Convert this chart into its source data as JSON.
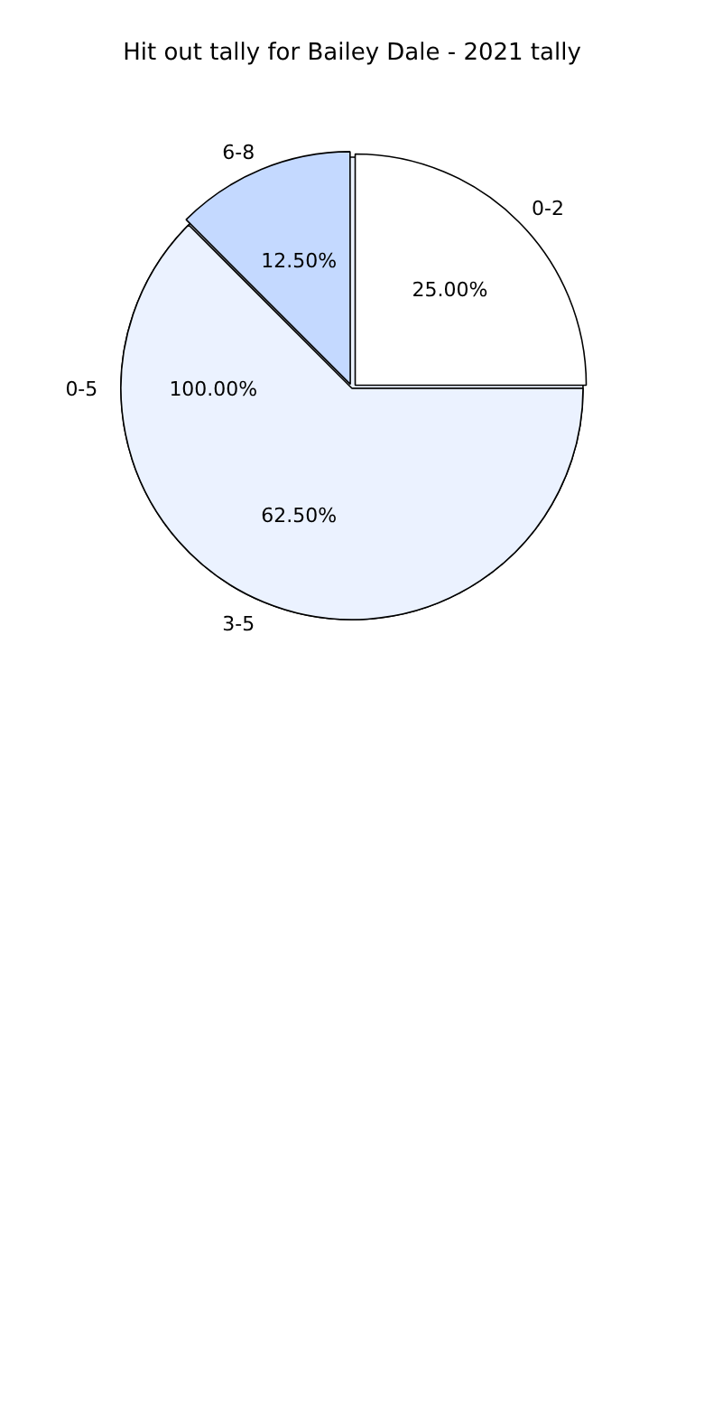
{
  "chart_data": [
    {
      "type": "pie",
      "categories": [
        "0-5"
      ],
      "values": [
        100
      ],
      "colors": [
        "#ebf2ff"
      ],
      "value_labels": [
        "100.00%"
      ],
      "legend": false
    },
    {
      "type": "pie",
      "title": "Hit out tally for Bailey Dale - 2021 tally",
      "categories": [
        "0-2",
        "3-5",
        "6-8"
      ],
      "values": [
        25,
        62.5,
        12.5
      ],
      "colors": [
        "#ffffff",
        "#ebf2ff",
        "#c4d9ff"
      ],
      "value_labels": [
        "25.00%",
        "62.50%",
        "12.50%"
      ],
      "legend": false
    }
  ]
}
